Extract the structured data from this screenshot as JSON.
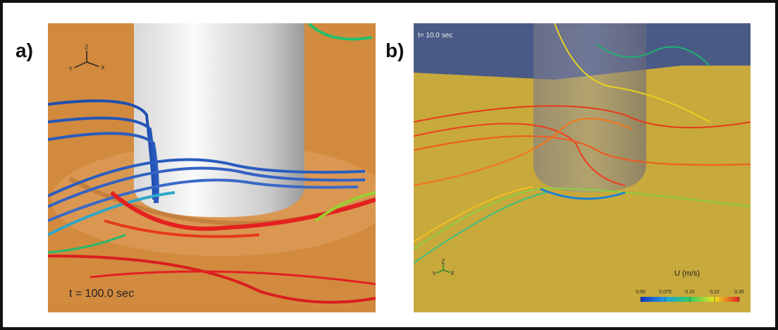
{
  "panels": [
    {
      "label": "a)",
      "time": "t = 100.0 sec",
      "axes": [
        "Z",
        "Y",
        "X"
      ]
    },
    {
      "label": "b)",
      "time": "t= 10.0 sec",
      "axes": [
        "Z",
        "Y",
        "X"
      ],
      "colorbar": {
        "title": "U (m/s)",
        "ticks": [
          "0.00",
          "0.075",
          "0.15",
          "0.22",
          "0.30"
        ]
      }
    }
  ]
}
